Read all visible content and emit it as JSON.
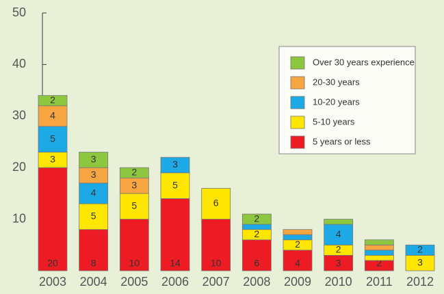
{
  "chart_data": {
    "type": "stacked-bar",
    "categories": [
      "2003",
      "2004",
      "2005",
      "2006",
      "2007",
      "2008",
      "2009",
      "2010",
      "2011",
      "2012"
    ],
    "series": [
      {
        "name": "5 years or less",
        "color": "#ed1c24",
        "values": [
          20,
          8,
          10,
          14,
          10,
          6,
          4,
          3,
          2,
          0
        ]
      },
      {
        "name": "5-10 years",
        "color": "#ffe600",
        "values": [
          3,
          5,
          5,
          5,
          6,
          2,
          2,
          2,
          1,
          3
        ]
      },
      {
        "name": "10-20 years",
        "color": "#1ca9e6",
        "values": [
          5,
          4,
          0,
          3,
          0,
          1,
          1,
          4,
          1,
          2
        ]
      },
      {
        "name": "20-30 years",
        "color": "#f7a541",
        "values": [
          4,
          3,
          3,
          0,
          0,
          0,
          1,
          0,
          1,
          0
        ]
      },
      {
        "name": "Over 30 years experience",
        "color": "#8dc63f",
        "values": [
          2,
          3,
          2,
          0,
          0,
          2,
          0,
          1,
          1,
          0
        ]
      }
    ],
    "ylim": [
      0,
      50
    ],
    "yticks": [
      10,
      20,
      30,
      40,
      50
    ],
    "legend": "upper right"
  }
}
